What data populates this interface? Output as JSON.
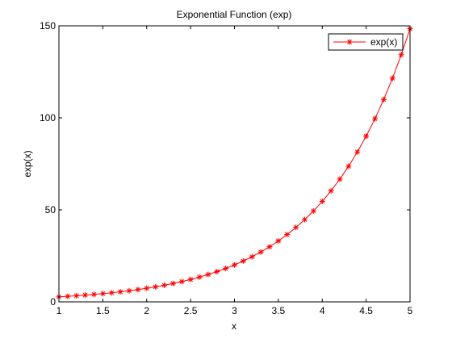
{
  "chart_data": {
    "type": "line",
    "title": "Exponential Function (exp)",
    "xlabel": "x",
    "ylabel": "exp(x)",
    "xlim": [
      1,
      5
    ],
    "ylim": [
      0,
      150
    ],
    "xticks": [
      1,
      1.5,
      2,
      2.5,
      3,
      3.5,
      4,
      4.5,
      5
    ],
    "xtick_labels": [
      "1",
      "1.5",
      "2",
      "2.5",
      "3",
      "3.5",
      "4",
      "4.5",
      "5"
    ],
    "yticks": [
      0,
      50,
      100,
      150
    ],
    "ytick_labels": [
      "0",
      "50",
      "100",
      "150"
    ],
    "grid": false,
    "legend_position": "top-right",
    "series": [
      {
        "name": "exp(x)",
        "color": "#ff0000",
        "marker": "asterisk",
        "x": [
          1.0,
          1.1,
          1.2,
          1.3,
          1.4,
          1.5,
          1.6,
          1.7,
          1.8,
          1.9,
          2.0,
          2.1,
          2.2,
          2.3,
          2.4,
          2.5,
          2.6,
          2.7,
          2.8,
          2.9,
          3.0,
          3.1,
          3.2,
          3.3,
          3.4,
          3.5,
          3.6,
          3.7,
          3.8,
          3.9,
          4.0,
          4.1,
          4.2,
          4.3,
          4.4,
          4.5,
          4.6,
          4.7,
          4.8,
          4.9,
          5.0
        ],
        "y": [
          2.72,
          3.0,
          3.32,
          3.67,
          4.06,
          4.48,
          4.95,
          5.47,
          6.05,
          6.69,
          7.39,
          8.17,
          9.03,
          9.97,
          11.02,
          12.18,
          13.46,
          14.88,
          16.44,
          18.17,
          20.09,
          22.2,
          24.53,
          27.11,
          29.96,
          33.12,
          36.6,
          40.45,
          44.7,
          49.4,
          54.6,
          60.34,
          66.69,
          73.7,
          81.45,
          90.02,
          99.48,
          109.95,
          121.51,
          134.29,
          148.41
        ]
      }
    ]
  }
}
